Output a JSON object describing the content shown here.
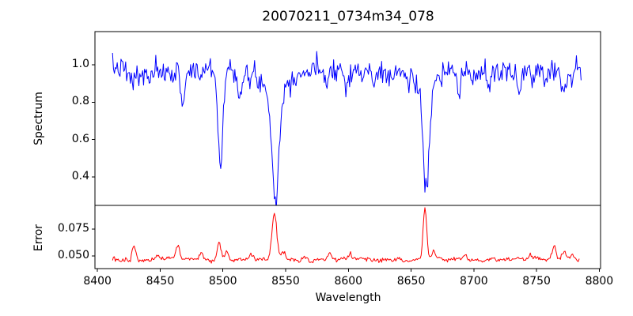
{
  "figure": {
    "title": "20070211_0734m34_078",
    "xlabel": "Wavelength",
    "background": "#ffffff",
    "axis_color": "#000000"
  },
  "chart_data": [
    {
      "type": "line",
      "panel": "top",
      "series_name": "Spectrum",
      "ylabel": "Spectrum",
      "color": "#0000ff",
      "xlim": [
        8398,
        8801
      ],
      "ylim": [
        0.247,
        1.178
      ],
      "yticks": [
        0.4,
        0.6,
        0.8,
        1.0
      ],
      "ytick_labels": [
        "0.4",
        "0.6",
        "0.8",
        "1.0"
      ],
      "x_start": 8412,
      "x_end": 8786,
      "x_step": 0.75,
      "seed": 7,
      "continuum": 0.968,
      "noise_sigma": 0.03,
      "wiggles": [
        {
          "amp": 0.012,
          "period": 90,
          "phase": 1.0
        },
        {
          "amp": 0.007,
          "period": 33,
          "phase": 4.2
        }
      ],
      "absorption_lines": [
        {
          "center": 8424,
          "depth": 0.05,
          "sigma": 1.2
        },
        {
          "center": 8428,
          "depth": 0.07,
          "sigma": 1.3
        },
        {
          "center": 8434,
          "depth": 0.05,
          "sigma": 1.2
        },
        {
          "center": 8441,
          "depth": 0.04,
          "sigma": 1.2
        },
        {
          "center": 8451,
          "depth": 0.04,
          "sigma": 1.2
        },
        {
          "center": 8468,
          "depth": 0.16,
          "sigma": 1.4
        },
        {
          "center": 8482,
          "depth": 0.05,
          "sigma": 1.2
        },
        {
          "center": 8498,
          "depth": 0.52,
          "sigma": 1.9
        },
        {
          "center": 8514,
          "depth": 0.13,
          "sigma": 1.8
        },
        {
          "center": 8521,
          "depth": 0.07,
          "sigma": 1.5
        },
        {
          "center": 8542,
          "depth": 0.55,
          "sigma": 2.6
        },
        {
          "center": 8542,
          "depth": 0.13,
          "sigma": 8.0
        },
        {
          "center": 8583,
          "depth": 0.08,
          "sigma": 1.4
        },
        {
          "center": 8598,
          "depth": 0.08,
          "sigma": 1.4
        },
        {
          "center": 8611,
          "depth": 0.05,
          "sigma": 1.2
        },
        {
          "center": 8621,
          "depth": 0.07,
          "sigma": 1.3
        },
        {
          "center": 8648,
          "depth": 0.06,
          "sigma": 1.3
        },
        {
          "center": 8662,
          "depth": 0.53,
          "sigma": 2.3
        },
        {
          "center": 8662,
          "depth": 0.12,
          "sigma": 7.0
        },
        {
          "center": 8674,
          "depth": 0.07,
          "sigma": 1.3
        },
        {
          "center": 8688,
          "depth": 0.16,
          "sigma": 1.6
        },
        {
          "center": 8699,
          "depth": 0.05,
          "sigma": 1.2
        },
        {
          "center": 8712,
          "depth": 0.08,
          "sigma": 1.4
        },
        {
          "center": 8736,
          "depth": 0.08,
          "sigma": 1.4
        },
        {
          "center": 8747,
          "depth": 0.06,
          "sigma": 1.3
        },
        {
          "center": 8757,
          "depth": 0.05,
          "sigma": 1.2
        },
        {
          "center": 8772,
          "depth": 0.12,
          "sigma": 1.8
        },
        {
          "center": 8779,
          "depth": 0.06,
          "sigma": 1.3
        }
      ]
    },
    {
      "type": "line",
      "panel": "bottom",
      "series_name": "Error",
      "ylabel": "Error",
      "color": "#ff0000",
      "xlim": [
        8398,
        8801
      ],
      "ylim": [
        0.0382,
        0.0971
      ],
      "yticks": [
        0.05,
        0.075
      ],
      "ytick_labels": [
        "0.050",
        "0.075"
      ],
      "xticks": [
        8400,
        8450,
        8500,
        8550,
        8600,
        8650,
        8700,
        8750,
        8800
      ],
      "xtick_labels": [
        "8400",
        "8450",
        "8500",
        "8550",
        "8600",
        "8650",
        "8700",
        "8750",
        "8800"
      ],
      "x_start": 8412,
      "x_end": 8784,
      "x_step": 0.75,
      "seed": 13,
      "baseline": 0.0465,
      "noise_sigma": 0.0011,
      "wiggles": [
        {
          "amp": 0.0008,
          "period": 70,
          "phase": 2.0
        }
      ],
      "peaks": [
        {
          "center": 8429,
          "height": 0.0135,
          "sigma": 1.4
        },
        {
          "center": 8448,
          "height": 0.004,
          "sigma": 1.2
        },
        {
          "center": 8464,
          "height": 0.0135,
          "sigma": 1.4
        },
        {
          "center": 8483,
          "height": 0.007,
          "sigma": 1.3
        },
        {
          "center": 8497,
          "height": 0.017,
          "sigma": 1.5
        },
        {
          "center": 8503,
          "height": 0.008,
          "sigma": 1.3
        },
        {
          "center": 8522,
          "height": 0.004,
          "sigma": 1.3
        },
        {
          "center": 8541,
          "height": 0.042,
          "sigma": 1.9
        },
        {
          "center": 8548,
          "height": 0.006,
          "sigma": 2.0
        },
        {
          "center": 8565,
          "height": 0.004,
          "sigma": 1.3
        },
        {
          "center": 8585,
          "height": 0.006,
          "sigma": 1.5
        },
        {
          "center": 8601,
          "height": 0.0045,
          "sigma": 1.3
        },
        {
          "center": 8640,
          "height": 0.003,
          "sigma": 1.2
        },
        {
          "center": 8661,
          "height": 0.0485,
          "sigma": 1.4
        },
        {
          "center": 8668,
          "height": 0.007,
          "sigma": 1.6
        },
        {
          "center": 8693,
          "height": 0.004,
          "sigma": 1.3
        },
        {
          "center": 8715,
          "height": 0.003,
          "sigma": 1.2
        },
        {
          "center": 8745,
          "height": 0.004,
          "sigma": 1.3
        },
        {
          "center": 8764,
          "height": 0.013,
          "sigma": 1.5
        },
        {
          "center": 8772,
          "height": 0.007,
          "sigma": 1.8
        },
        {
          "center": 8779,
          "height": 0.005,
          "sigma": 1.4
        }
      ]
    }
  ]
}
